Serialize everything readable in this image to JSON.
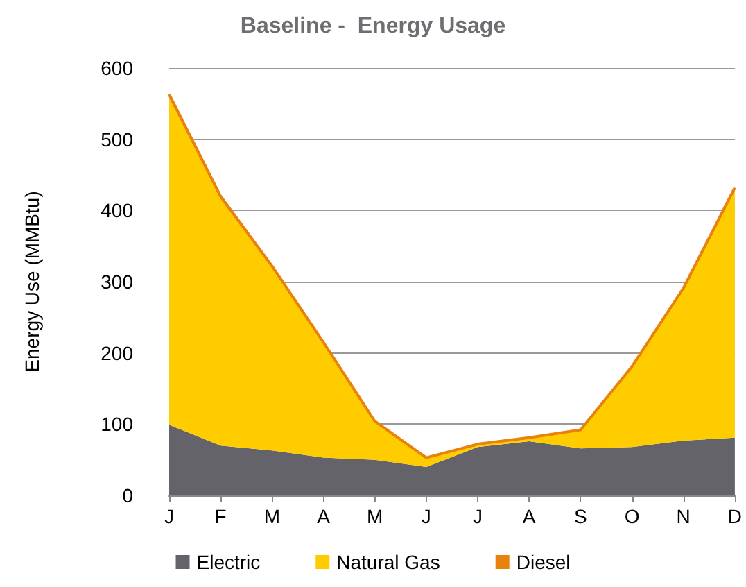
{
  "chart_data": {
    "type": "area",
    "title": "Baseline -  Energy Usage",
    "ylabel": "Energy Use (MMBtu)",
    "categories": [
      "J",
      "F",
      "M",
      "A",
      "M",
      "J",
      "J",
      "A",
      "S",
      "O",
      "N",
      "D"
    ],
    "stacked": true,
    "series": [
      {
        "name": "Electric",
        "color": "#636369",
        "values": [
          99,
          70,
          63,
          53,
          50,
          40,
          68,
          76,
          66,
          68,
          77,
          81
        ]
      },
      {
        "name": "Natural Gas",
        "color": "#ffcc00",
        "values": [
          459,
          346,
          256,
          160,
          53,
          13,
          4,
          5,
          26,
          112,
          211,
          347
        ]
      },
      {
        "name": "Diesel",
        "color": "#e8820c",
        "values": [
          5,
          4,
          3,
          2,
          1,
          0,
          0,
          0,
          0,
          1,
          3,
          4
        ]
      }
    ],
    "ylim": [
      0,
      600
    ],
    "yticks": [
      0,
      100,
      200,
      300,
      400,
      500,
      600
    ],
    "grid": "y",
    "legend": "bottom"
  }
}
